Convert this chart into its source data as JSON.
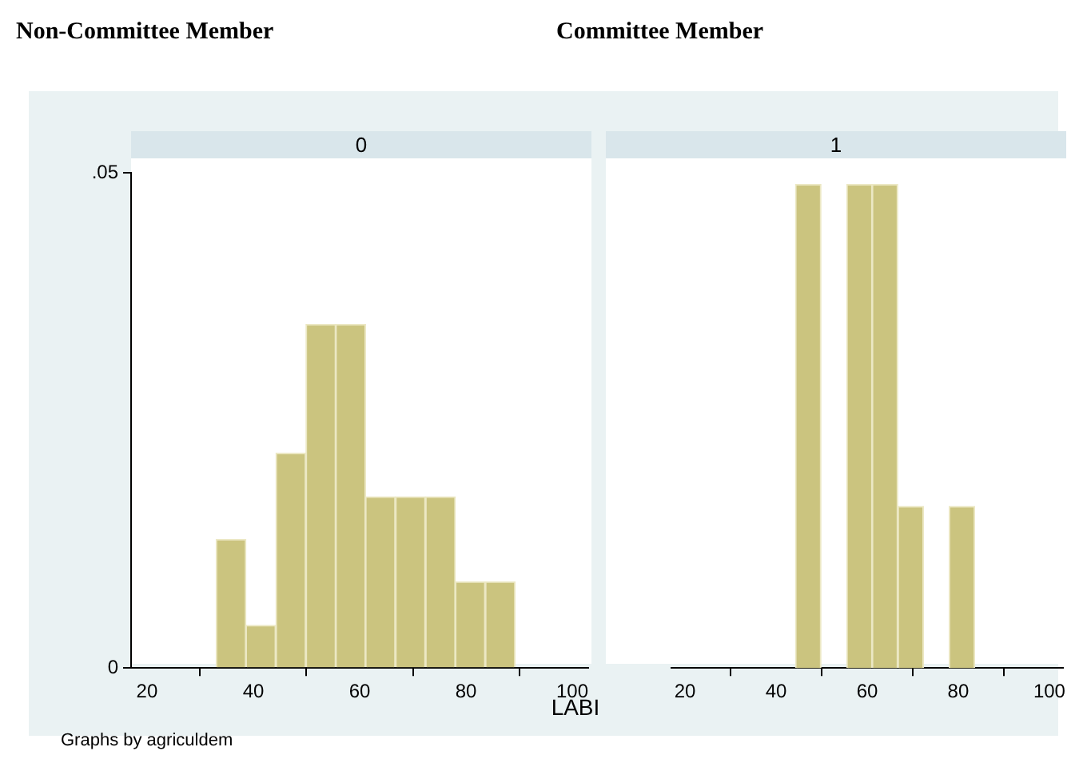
{
  "chart_data": [
    {
      "type": "histogram",
      "title": "Non-Committee Member",
      "subtitle": "0",
      "xlabel": "LABI",
      "annotations": [
        "Graphs by agriculdem"
      ],
      "color": "#cbc47f",
      "bins": [
        33.0,
        38.6,
        44.2,
        49.9,
        55.5,
        61.1,
        66.7,
        72.4,
        78.0,
        83.6,
        89.3
      ],
      "values": [
        0.013,
        0.0043,
        0.0217,
        0.0347,
        0.0347,
        0.0173,
        0.0173,
        0.0173,
        0.0087,
        0.0087
      ],
      "xlim": [
        17,
        103
      ],
      "xticks": [
        20,
        40,
        60,
        80,
        100
      ],
      "ylim": [
        0,
        0.05
      ],
      "yticks": [
        0,
        {
          "value": 0.05,
          "label": ".05"
        }
      ],
      "grid": false
    },
    {
      "type": "histogram",
      "title": "Committee Member",
      "subtitle": "1",
      "color": "#cbc47f",
      "bins": [
        44.2,
        49.9,
        55.5,
        61.1,
        66.7,
        72.4,
        78.0,
        83.6
      ],
      "values": [
        0.0485,
        0,
        0.0485,
        0.0485,
        0.0162,
        0,
        0.0162
      ],
      "xlim": [
        17,
        103
      ],
      "xticks": [
        20,
        40,
        60,
        80,
        100
      ],
      "ylim": [
        0,
        0.05
      ],
      "grid": false,
      "tick_labels": "x"
    }
  ]
}
